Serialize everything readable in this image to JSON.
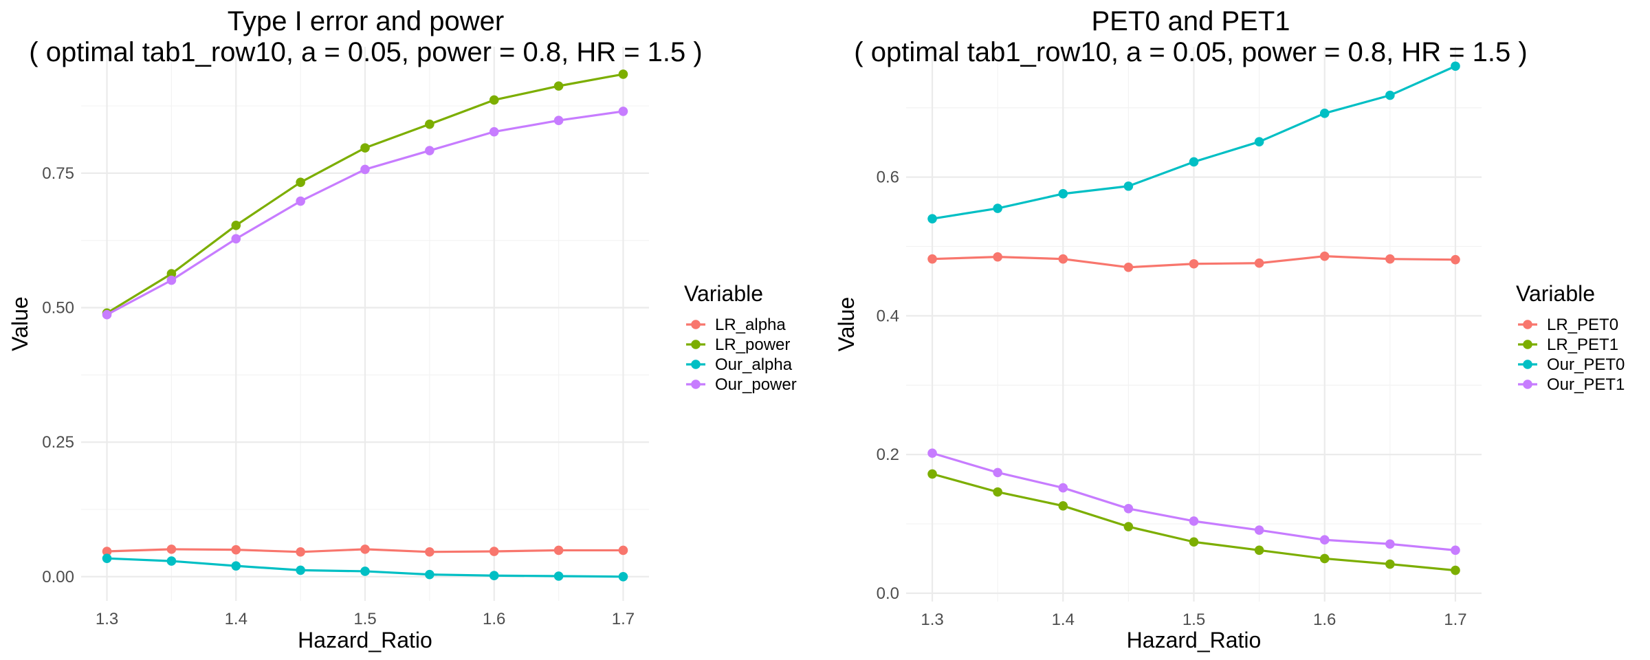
{
  "chart_data": [
    {
      "type": "line",
      "title": "Type I error and power",
      "subtitle": "( optimal tab1_row10, a = 0.05, power = 0.8, HR = 1.5 )",
      "xlabel": "Hazard_Ratio",
      "ylabel": "Value",
      "xlim": [
        1.28,
        1.72
      ],
      "ylim": [
        -0.045,
        0.985
      ],
      "x_ticks": [
        1.3,
        1.4,
        1.5,
        1.6,
        1.7
      ],
      "y_ticks": [
        0.0,
        0.25,
        0.5,
        0.75
      ],
      "x_tick_labels": [
        "1.3",
        "1.4",
        "1.5",
        "1.6",
        "1.7"
      ],
      "y_tick_labels": [
        "0.00",
        "0.25",
        "0.50",
        "0.75"
      ],
      "grid": true,
      "legend_title": "Variable",
      "legend_position": "right",
      "x": [
        1.3,
        1.35,
        1.4,
        1.45,
        1.5,
        1.55,
        1.6,
        1.65,
        1.7
      ],
      "series": [
        {
          "name": "LR_alpha",
          "color": "#F8766D",
          "values": [
            0.047,
            0.051,
            0.05,
            0.046,
            0.051,
            0.046,
            0.047,
            0.049,
            0.049
          ]
        },
        {
          "name": "LR_power",
          "color": "#7CAE00",
          "values": [
            0.49,
            0.563,
            0.653,
            0.733,
            0.797,
            0.841,
            0.886,
            0.912,
            0.934
          ]
        },
        {
          "name": "Our_alpha",
          "color": "#00BFC4",
          "values": [
            0.034,
            0.029,
            0.02,
            0.012,
            0.01,
            0.004,
            0.002,
            0.001,
            0.0
          ]
        },
        {
          "name": "Our_power",
          "color": "#C77CFF",
          "values": [
            0.487,
            0.551,
            0.628,
            0.698,
            0.757,
            0.792,
            0.827,
            0.848,
            0.865
          ]
        }
      ]
    },
    {
      "type": "line",
      "title": "PET0 and PET1",
      "subtitle": "( optimal tab1_row10, a = 0.05, power = 0.8, HR = 1.5 )",
      "xlabel": "Hazard_Ratio",
      "ylabel": "Value",
      "xlim": [
        1.28,
        1.72
      ],
      "ylim": [
        -0.012,
        0.788
      ],
      "x_ticks": [
        1.3,
        1.4,
        1.5,
        1.6,
        1.7
      ],
      "y_ticks": [
        0.0,
        0.2,
        0.4,
        0.6
      ],
      "x_tick_labels": [
        "1.3",
        "1.4",
        "1.5",
        "1.6",
        "1.7"
      ],
      "y_tick_labels": [
        "0.0",
        "0.2",
        "0.4",
        "0.6"
      ],
      "grid": true,
      "legend_title": "Variable",
      "legend_position": "right",
      "x": [
        1.3,
        1.35,
        1.4,
        1.45,
        1.5,
        1.55,
        1.6,
        1.65,
        1.7
      ],
      "series": [
        {
          "name": "LR_PET0",
          "color": "#F8766D",
          "values": [
            0.482,
            0.485,
            0.482,
            0.47,
            0.475,
            0.476,
            0.486,
            0.482,
            0.481
          ]
        },
        {
          "name": "LR_PET1",
          "color": "#7CAE00",
          "values": [
            0.172,
            0.146,
            0.126,
            0.096,
            0.074,
            0.062,
            0.05,
            0.042,
            0.033
          ]
        },
        {
          "name": "Our_PET0",
          "color": "#00BFC4",
          "values": [
            0.54,
            0.555,
            0.576,
            0.587,
            0.622,
            0.651,
            0.692,
            0.718,
            0.76
          ]
        },
        {
          "name": "Our_PET1",
          "color": "#C77CFF",
          "values": [
            0.202,
            0.174,
            0.152,
            0.122,
            0.104,
            0.091,
            0.077,
            0.071,
            0.062
          ]
        }
      ]
    }
  ]
}
